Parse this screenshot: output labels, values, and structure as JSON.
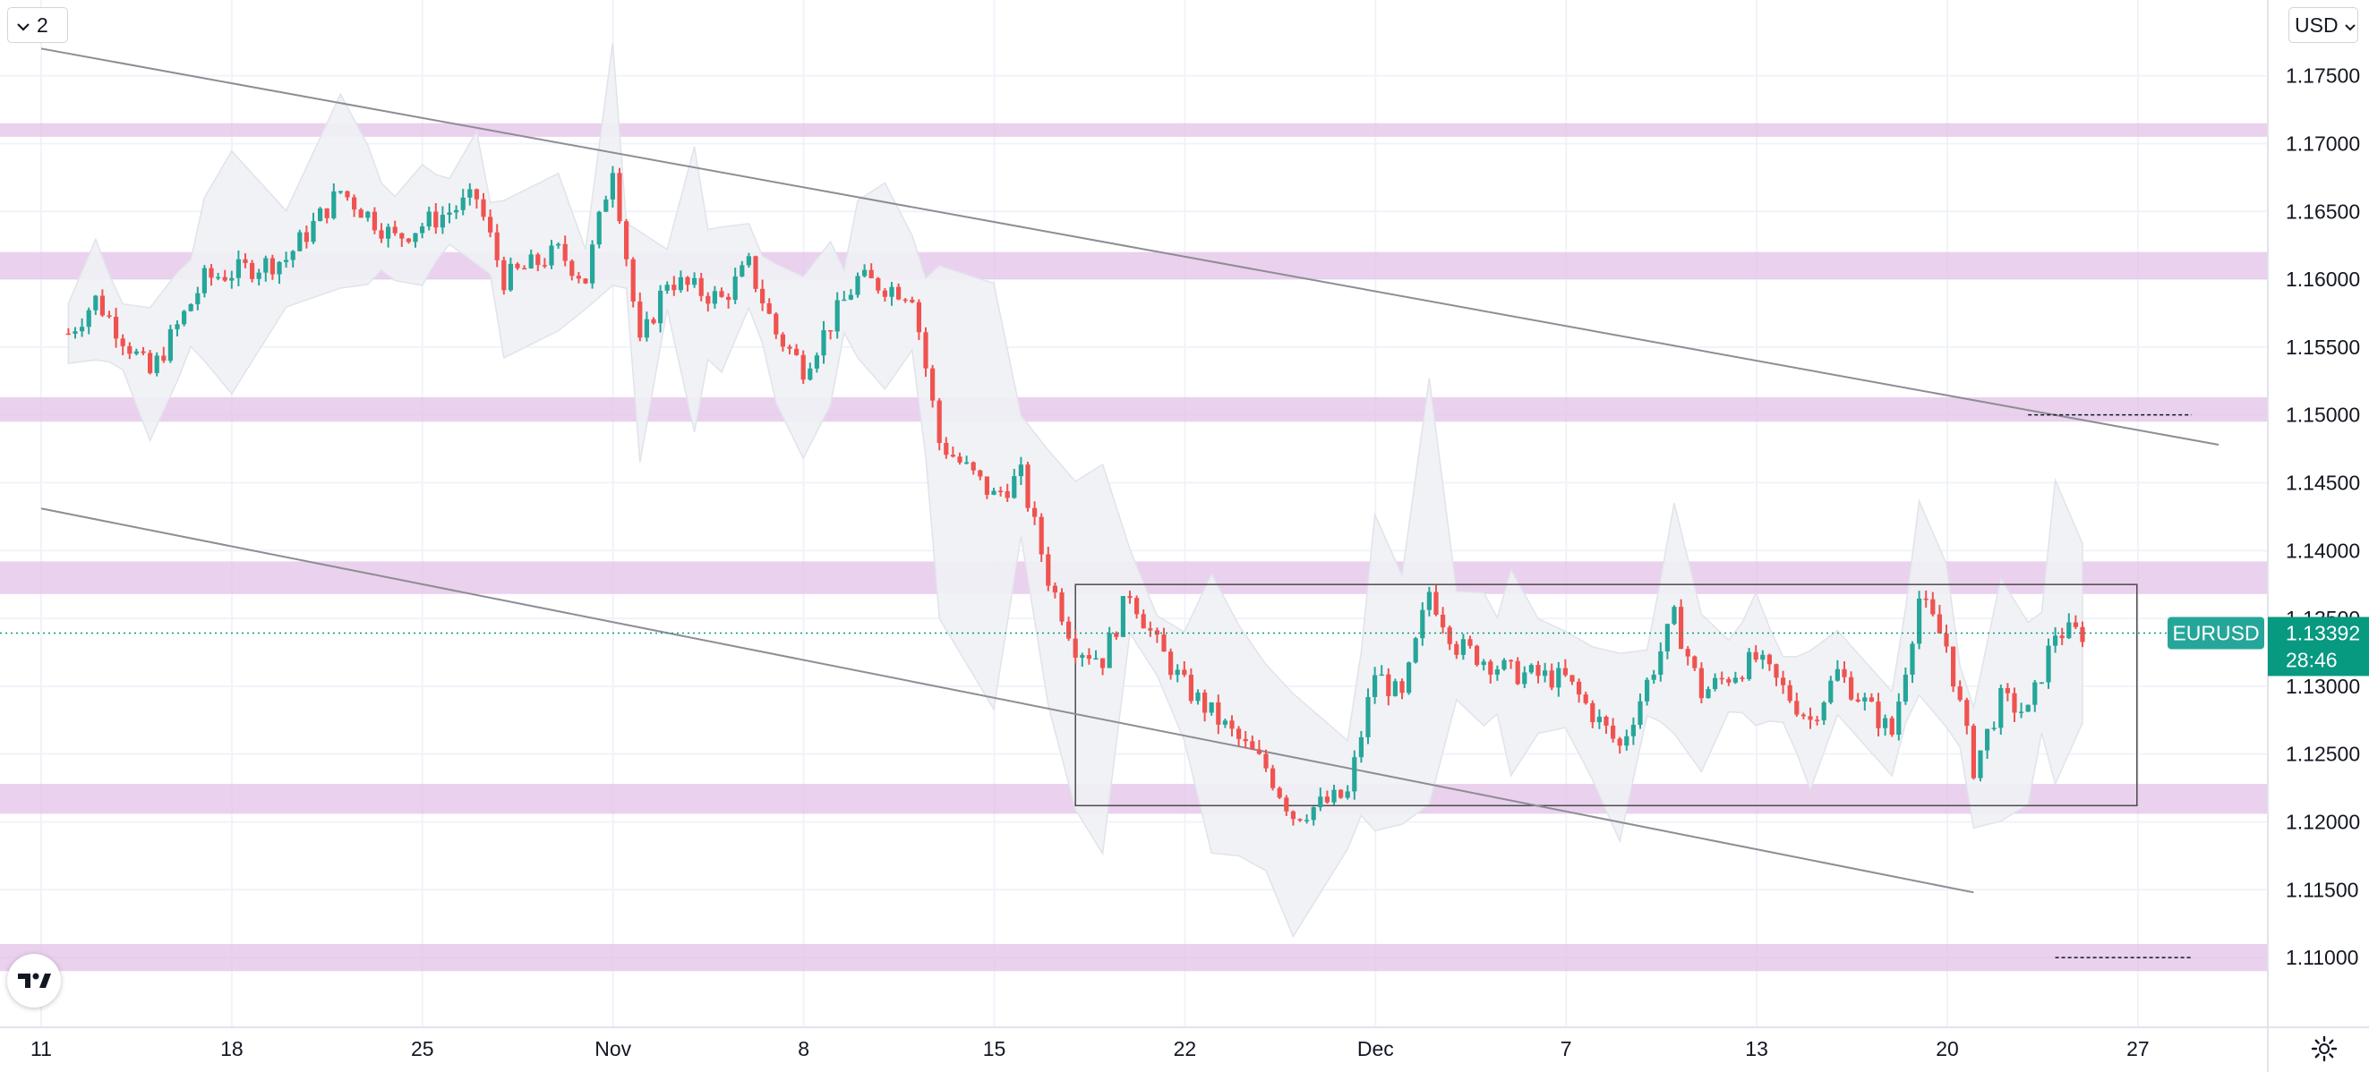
{
  "controls": {
    "collapse_count": "2",
    "currency": "USD"
  },
  "icons": {
    "collapse": "chevron-down-icon",
    "currency": "chevron-down-icon",
    "logo": "tradingview-logo-icon",
    "settings": "gear-icon"
  },
  "colors": {
    "up": "#26a69a",
    "down": "#ef5350",
    "zone": "#e1bee7",
    "price_tag": "#089981",
    "symbol_tag": "#26a69a",
    "bands": "#e0e3eb"
  },
  "chart_data": {
    "type": "candlestick",
    "symbol": "EURUSD",
    "last_price": "1.13392",
    "countdown": "28:46",
    "x_tick_labels": [
      "11",
      "18",
      "25",
      "Nov",
      "8",
      "15",
      "22",
      "Dec",
      "7",
      "13",
      "20",
      "27"
    ],
    "y_tick_labels": [
      "1.17500",
      "1.17000",
      "1.16500",
      "1.16000",
      "1.15500",
      "1.15000",
      "1.14500",
      "1.14000",
      "1.13500",
      "1.13000",
      "1.12500",
      "1.12000",
      "1.11500",
      "1.11000"
    ],
    "y_range": [
      1.1075,
      1.179
    ],
    "grid": true,
    "resistance_zones": [
      {
        "low": 1.1705,
        "high": 1.1715
      },
      {
        "low": 1.16,
        "high": 1.162
      },
      {
        "low": 1.1495,
        "high": 1.1513
      },
      {
        "low": 1.1368,
        "high": 1.1392
      },
      {
        "low": 1.1206,
        "high": 1.1228
      },
      {
        "low": 1.109,
        "high": 1.111
      }
    ],
    "range_box": {
      "from_date": "Nov 17",
      "to_date": "Dec 26",
      "low": 1.1212,
      "high": 1.1375
    },
    "dashed_levels": [
      {
        "price": 1.15,
        "from_date": "Dec 22",
        "to_date": "Dec 28"
      },
      {
        "price": 1.11,
        "from_date": "Dec 23",
        "to_date": "Dec 28"
      }
    ],
    "trendlines": [
      {
        "from": {
          "date": "Oct 10",
          "price": 1.177
        },
        "to": {
          "date": "Dec 29",
          "price": 1.1478
        }
      },
      {
        "from": {
          "date": "Oct 10",
          "price": 1.1431
        },
        "to": {
          "date": "Dec 20",
          "price": 1.1148
        }
      }
    ],
    "price_path": [
      {
        "date": "Oct 11",
        "price": 1.156
      },
      {
        "date": "Oct 12",
        "price": 1.1585
      },
      {
        "date": "Oct 14",
        "price": 1.153
      },
      {
        "date": "Oct 16",
        "price": 1.16
      },
      {
        "date": "Oct 19",
        "price": 1.1615
      },
      {
        "date": "Oct 21",
        "price": 1.1665
      },
      {
        "date": "Oct 23",
        "price": 1.163
      },
      {
        "date": "Oct 26",
        "price": 1.166
      },
      {
        "date": "Oct 27",
        "price": 1.16
      },
      {
        "date": "Oct 29",
        "price": 1.162
      },
      {
        "date": "Oct 30",
        "price": 1.16
      },
      {
        "date": "Oct 31",
        "price": 1.1685
      },
      {
        "date": "Nov 1",
        "price": 1.155
      },
      {
        "date": "Nov 2",
        "price": 1.16
      },
      {
        "date": "Nov 4",
        "price": 1.1585
      },
      {
        "date": "Nov 5",
        "price": 1.161
      },
      {
        "date": "Nov 6",
        "price": 1.156
      },
      {
        "date": "Nov 7",
        "price": 1.1535
      },
      {
        "date": "Nov 9",
        "price": 1.16
      },
      {
        "date": "Nov 11",
        "price": 1.159
      },
      {
        "date": "Nov 12",
        "price": 1.148
      },
      {
        "date": "Nov 14",
        "price": 1.144
      },
      {
        "date": "Nov 15",
        "price": 1.1455
      },
      {
        "date": "Nov 16",
        "price": 1.138
      },
      {
        "date": "Nov 17",
        "price": 1.133
      },
      {
        "date": "Nov 18",
        "price": 1.132
      },
      {
        "date": "Nov 19",
        "price": 1.137
      },
      {
        "date": "Nov 20",
        "price": 1.133
      },
      {
        "date": "Nov 21",
        "price": 1.13
      },
      {
        "date": "Nov 23",
        "price": 1.126
      },
      {
        "date": "Nov 24",
        "price": 1.124
      },
      {
        "date": "Nov 25",
        "price": 1.1205
      },
      {
        "date": "Nov 27",
        "price": 1.122
      },
      {
        "date": "Nov 28",
        "price": 1.131
      },
      {
        "date": "Nov 29",
        "price": 1.129
      },
      {
        "date": "Nov 30",
        "price": 1.137
      },
      {
        "date": "Dec 1",
        "price": 1.133
      },
      {
        "date": "Dec 3",
        "price": 1.131
      },
      {
        "date": "Dec 5",
        "price": 1.1305
      },
      {
        "date": "Dec 7",
        "price": 1.1255
      },
      {
        "date": "Dec 9",
        "price": 1.135
      },
      {
        "date": "Dec 10",
        "price": 1.1295
      },
      {
        "date": "Dec 12",
        "price": 1.132
      },
      {
        "date": "Dec 14",
        "price": 1.1275
      },
      {
        "date": "Dec 15",
        "price": 1.131
      },
      {
        "date": "Dec 17",
        "price": 1.1265
      },
      {
        "date": "Dec 18",
        "price": 1.1365
      },
      {
        "date": "Dec 19",
        "price": 1.133
      },
      {
        "date": "Dec 20",
        "price": 1.124
      },
      {
        "date": "Dec 21",
        "price": 1.129
      },
      {
        "date": "Dec 22",
        "price": 1.128
      },
      {
        "date": "Dec 23",
        "price": 1.134
      },
      {
        "date": "Dec 24",
        "price": 1.1339
      }
    ]
  }
}
